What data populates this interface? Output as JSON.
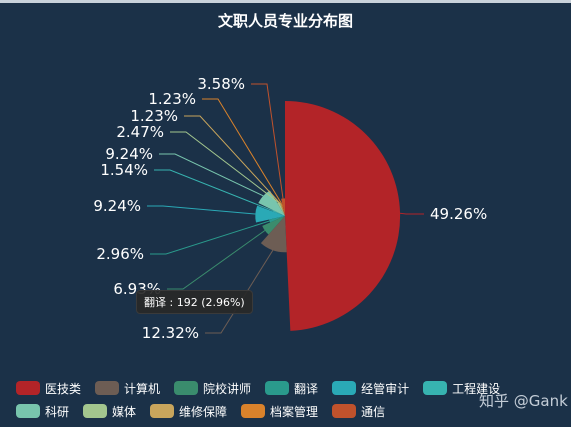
{
  "chart_data": {
    "type": "pie",
    "subtype": "rose",
    "title": "文职人员专业分布图",
    "legend_position": "bottom-left",
    "slices": [
      {
        "name": "医技类",
        "percent": 49.26,
        "label": "49.26%",
        "color": "#b32428"
      },
      {
        "name": "计算机",
        "percent": 12.32,
        "label": "12.32%",
        "color": "#6d5d54"
      },
      {
        "name": "院校讲师",
        "percent": 6.93,
        "label": "6.93%",
        "color": "#3a8c6d"
      },
      {
        "name": "翻译",
        "percent": 2.96,
        "label": "2.96%",
        "color": "#2a9a8c"
      },
      {
        "name": "经管审计",
        "percent": 9.24,
        "label": "9.24%",
        "color": "#2aa9b6"
      },
      {
        "name": "工程建设",
        "percent": 1.54,
        "label": "1.54%",
        "color": "#37b3b0"
      },
      {
        "name": "科研",
        "percent": 9.24,
        "label": "9.24%",
        "color": "#78c5ad"
      },
      {
        "name": "媒体",
        "percent": 2.47,
        "label": "2.47%",
        "color": "#a3c68e"
      },
      {
        "name": "维修保障",
        "percent": 1.23,
        "label": "1.23%",
        "color": "#c8a55c"
      },
      {
        "name": "档案管理",
        "percent": 1.23,
        "label": "1.23%",
        "color": "#d9822b"
      },
      {
        "name": "通信",
        "percent": 3.58,
        "label": "3.58%",
        "color": "#c0522c"
      }
    ],
    "tooltip": {
      "text": "翻译 : 192 (2.96%)"
    }
  },
  "watermark": "知乎 @Gank"
}
